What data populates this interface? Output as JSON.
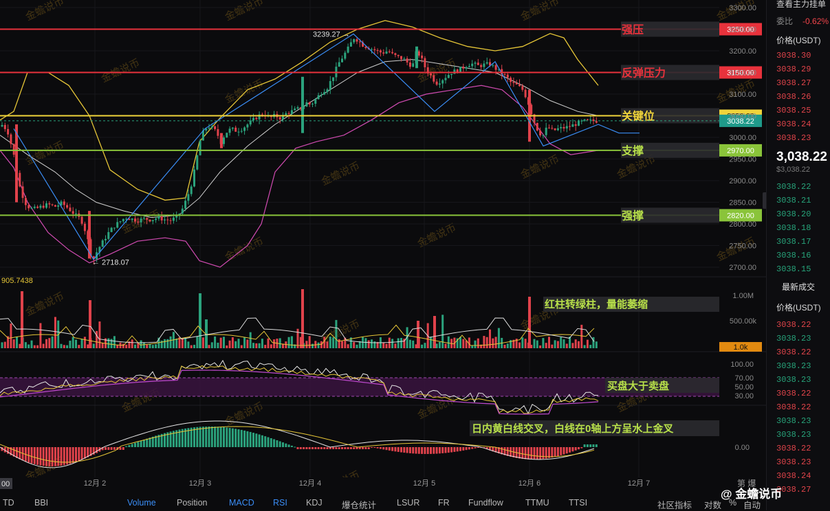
{
  "colors": {
    "up": "#2ba37d",
    "down": "#e0424b",
    "resistance": "#e8323c",
    "key": "#f0d43a",
    "support": "#8ac43a",
    "accent": "#3a8df5",
    "boll_mid": "#cfcfcf",
    "boll_up": "#e6c637",
    "boll_low": "#d14bb2",
    "zigzag": "#3a8df5",
    "ma": "#e6c637"
  },
  "chart_data": {
    "type": "candlestick",
    "instrument_price_axis": {
      "min": 2650,
      "max": 3310,
      "ticks": [
        3300,
        3250,
        3200,
        3150,
        3100,
        3050,
        3000,
        2950,
        2900,
        2850,
        2800,
        2750,
        2700
      ]
    },
    "date_ticks": [
      "12月 2",
      "12月 3",
      "12月 4",
      "12月 5",
      "12月 6",
      "12月 7"
    ],
    "close_path": [
      [
        0,
        3025
      ],
      [
        4,
        3030
      ],
      [
        12,
        3010
      ],
      [
        20,
        2960
      ],
      [
        28,
        2890
      ],
      [
        36,
        2850
      ],
      [
        44,
        2835
      ],
      [
        52,
        2835
      ],
      [
        60,
        2840
      ],
      [
        70,
        2845
      ],
      [
        80,
        2840
      ],
      [
        90,
        2848
      ],
      [
        100,
        2835
      ],
      [
        110,
        2820
      ],
      [
        118,
        2810
      ],
      [
        126,
        2775
      ],
      [
        132,
        2730
      ],
      [
        136,
        2718
      ],
      [
        142,
        2740
      ],
      [
        150,
        2760
      ],
      [
        158,
        2780
      ],
      [
        166,
        2795
      ],
      [
        174,
        2805
      ],
      [
        182,
        2815
      ],
      [
        190,
        2812
      ],
      [
        200,
        2808
      ],
      [
        210,
        2812
      ],
      [
        220,
        2810
      ],
      [
        230,
        2814
      ],
      [
        240,
        2810
      ],
      [
        248,
        2808
      ],
      [
        256,
        2815
      ],
      [
        264,
        2830
      ],
      [
        272,
        2860
      ],
      [
        280,
        2900
      ],
      [
        286,
        2950
      ],
      [
        292,
        3000
      ],
      [
        298,
        3020
      ],
      [
        304,
        3025
      ],
      [
        310,
        3020
      ],
      [
        316,
        3010
      ],
      [
        320,
        2985
      ],
      [
        328,
        3010
      ],
      [
        336,
        3020
      ],
      [
        344,
        3015
      ],
      [
        352,
        3020
      ],
      [
        360,
        3030
      ],
      [
        368,
        3040
      ],
      [
        376,
        3050
      ],
      [
        384,
        3055
      ],
      [
        392,
        3045
      ],
      [
        400,
        3050
      ],
      [
        408,
        3045
      ],
      [
        416,
        3055
      ],
      [
        424,
        3060
      ],
      [
        432,
        3065
      ],
      [
        440,
        3070
      ],
      [
        446,
        3080
      ],
      [
        452,
        3075
      ],
      [
        460,
        3090
      ],
      [
        468,
        3105
      ],
      [
        476,
        3115
      ],
      [
        484,
        3140
      ],
      [
        492,
        3170
      ],
      [
        500,
        3190
      ],
      [
        508,
        3210
      ],
      [
        514,
        3230
      ],
      [
        520,
        3225
      ],
      [
        526,
        3215
      ],
      [
        532,
        3210
      ],
      [
        540,
        3205
      ],
      [
        548,
        3200
      ],
      [
        556,
        3195
      ],
      [
        564,
        3200
      ],
      [
        572,
        3190
      ],
      [
        580,
        3185
      ],
      [
        588,
        3180
      ],
      [
        594,
        3170
      ],
      [
        600,
        3165
      ],
      [
        606,
        3200
      ],
      [
        612,
        3185
      ],
      [
        620,
        3155
      ],
      [
        628,
        3140
      ],
      [
        634,
        3125
      ],
      [
        640,
        3130
      ],
      [
        648,
        3140
      ],
      [
        656,
        3150
      ],
      [
        664,
        3155
      ],
      [
        672,
        3160
      ],
      [
        680,
        3168
      ],
      [
        688,
        3170
      ],
      [
        696,
        3165
      ],
      [
        704,
        3168
      ],
      [
        712,
        3170
      ],
      [
        720,
        3160
      ],
      [
        728,
        3150
      ],
      [
        736,
        3140
      ],
      [
        744,
        3125
      ],
      [
        752,
        3120
      ],
      [
        760,
        3110
      ],
      [
        766,
        3090
      ],
      [
        772,
        3060
      ],
      [
        778,
        3030
      ],
      [
        784,
        3010
      ],
      [
        790,
        3005
      ],
      [
        796,
        3025
      ],
      [
        804,
        3015
      ],
      [
        812,
        3020
      ],
      [
        820,
        3022
      ],
      [
        828,
        3025
      ],
      [
        836,
        3030
      ],
      [
        844,
        3035
      ],
      [
        852,
        3038
      ],
      [
        860,
        3038
      ],
      [
        868,
        3038
      ]
    ],
    "bb_mid": [
      [
        0,
        3005
      ],
      [
        40,
        2960
      ],
      [
        80,
        2920
      ],
      [
        110,
        2880
      ],
      [
        140,
        2850
      ],
      [
        180,
        2830
      ],
      [
        220,
        2815
      ],
      [
        260,
        2820
      ],
      [
        290,
        2860
      ],
      [
        320,
        2920
      ],
      [
        360,
        2980
      ],
      [
        400,
        3030
      ],
      [
        440,
        3070
      ],
      [
        480,
        3110
      ],
      [
        520,
        3150
      ],
      [
        560,
        3175
      ],
      [
        600,
        3180
      ],
      [
        640,
        3170
      ],
      [
        680,
        3160
      ],
      [
        720,
        3150
      ],
      [
        760,
        3120
      ],
      [
        800,
        3085
      ],
      [
        840,
        3060
      ],
      [
        870,
        3050
      ]
    ],
    "bb_up": [
      [
        0,
        3040
      ],
      [
        20,
        3060
      ],
      [
        40,
        3150
      ],
      [
        70,
        3150
      ],
      [
        100,
        3120
      ],
      [
        130,
        3050
      ],
      [
        160,
        2925
      ],
      [
        200,
        2880
      ],
      [
        240,
        2855
      ],
      [
        270,
        2860
      ],
      [
        290,
        2990
      ],
      [
        320,
        3045
      ],
      [
        360,
        3110
      ],
      [
        400,
        3135
      ],
      [
        440,
        3175
      ],
      [
        480,
        3220
      ],
      [
        520,
        3250
      ],
      [
        560,
        3270
      ],
      [
        600,
        3255
      ],
      [
        640,
        3230
      ],
      [
        680,
        3210
      ],
      [
        720,
        3200
      ],
      [
        760,
        3210
      ],
      [
        800,
        3240
      ],
      [
        820,
        3230
      ],
      [
        840,
        3180
      ],
      [
        870,
        3120
      ]
    ],
    "bb_low": [
      [
        0,
        2970
      ],
      [
        20,
        2930
      ],
      [
        40,
        2850
      ],
      [
        70,
        2780
      ],
      [
        100,
        2740
      ],
      [
        130,
        2710
      ],
      [
        160,
        2730
      ],
      [
        200,
        2760
      ],
      [
        240,
        2768
      ],
      [
        270,
        2760
      ],
      [
        290,
        2715
      ],
      [
        320,
        2700
      ],
      [
        360,
        2750
      ],
      [
        380,
        2800
      ],
      [
        400,
        2920
      ],
      [
        430,
        2975
      ],
      [
        460,
        2990
      ],
      [
        500,
        3005
      ],
      [
        540,
        3040
      ],
      [
        580,
        3080
      ],
      [
        620,
        3100
      ],
      [
        660,
        3110
      ],
      [
        700,
        3120
      ],
      [
        730,
        3110
      ],
      [
        760,
        3070
      ],
      [
        800,
        2985
      ],
      [
        830,
        2960
      ],
      [
        870,
        2970
      ]
    ],
    "zigzag": [
      [
        20,
        3020
      ],
      [
        136,
        2718
      ],
      [
        298,
        3020
      ],
      [
        514,
        3239
      ],
      [
        632,
        3060
      ],
      [
        720,
        3175
      ],
      [
        790,
        2980
      ],
      [
        870,
        3030
      ],
      [
        900,
        3010
      ],
      [
        930,
        3010
      ]
    ],
    "levels": [
      {
        "price": 3250,
        "label": "强压",
        "tag": "3250.00",
        "kind": "resistance"
      },
      {
        "price": 3150,
        "label": "反弹压力",
        "tag": "3150.00",
        "kind": "resistance"
      },
      {
        "price": 3050,
        "label": "关键位",
        "tag": "3050.00",
        "kind": "key"
      },
      {
        "price": 2970,
        "label": "支撑",
        "tag": "2970.00",
        "kind": "support"
      },
      {
        "price": 2820,
        "label": "强撑",
        "tag": "2820.00",
        "kind": "support"
      }
    ],
    "current_price": 3038.22,
    "current_price_tag": "3038.22",
    "high_label": "3239.27",
    "low_label": "2718.07",
    "volume": {
      "readout": "905.7438",
      "ticks": [
        "1.00M",
        "500.00k"
      ],
      "last_tag": "1.0k",
      "note": "红柱转绿柱，量能萎缩"
    },
    "rsi": {
      "ticks": [
        "100.00",
        "70.00",
        "50.00",
        "30.00"
      ],
      "note": "买盘大于卖盘"
    },
    "macd": {
      "ticks": [
        "0.00"
      ],
      "note": "日内黄白线交叉，白线在0轴上方呈水上金叉"
    },
    "axis_cut_labels": {
      "left_start": "TD",
      "left_time": "00",
      "right_top": "第",
      "right_time": "爆"
    }
  },
  "sidebar": {
    "title": "查看主力挂单",
    "wb_label": "委比",
    "wb_value": "-0.62%",
    "ask_header": "价格(USDT)",
    "asks": [
      "3038.30",
      "3038.29",
      "3038.27",
      "3038.26",
      "3038.25",
      "3038.24",
      "3038.23"
    ],
    "last_price": "3,038.22",
    "last_price_sub": "$3,038.22",
    "bids": [
      "3038.22",
      "3038.21",
      "3038.20",
      "3038.18",
      "3038.17",
      "3038.16",
      "3038.15"
    ],
    "trades_title": "最新成交",
    "trades_header": "价格(USDT)",
    "trades": [
      {
        "p": "3038.22",
        "c": "red"
      },
      {
        "p": "3038.23",
        "c": "green"
      },
      {
        "p": "3038.22",
        "c": "red"
      },
      {
        "p": "3038.23",
        "c": "green"
      },
      {
        "p": "3038.23",
        "c": "green"
      },
      {
        "p": "3038.22",
        "c": "red"
      },
      {
        "p": "3038.22",
        "c": "red"
      },
      {
        "p": "3038.23",
        "c": "green"
      },
      {
        "p": "3038.23",
        "c": "green"
      },
      {
        "p": "3038.22",
        "c": "red"
      },
      {
        "p": "3038.23",
        "c": "red"
      },
      {
        "p": "3038.24",
        "c": "red"
      },
      {
        "p": "3038.27",
        "c": "red"
      }
    ]
  },
  "tabs": [
    "BBI",
    "Volume",
    "Position",
    "MACD",
    "RSI",
    "KDJ",
    "爆仓统计",
    "LSUR",
    "FR",
    "Fundflow",
    "TTMU",
    "TTSI",
    "社区指标",
    "对数",
    "%",
    "自动"
  ],
  "active_tabs": [
    "Volume",
    "MACD",
    "RSI"
  ],
  "brand": "@ 金蟾说币",
  "watermark": "金蟾说币"
}
